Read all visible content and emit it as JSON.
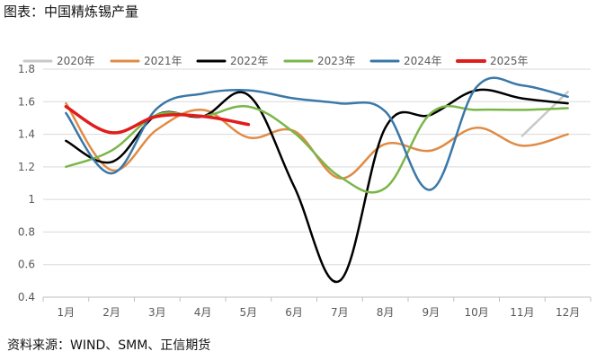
{
  "title": "图表：中国精炼锡产量",
  "source": "资料来源：WIND、SMM、正信期货",
  "chart_data": {
    "type": "line",
    "categories": [
      "1月",
      "2月",
      "3月",
      "4月",
      "5月",
      "6月",
      "7月",
      "8月",
      "9月",
      "10月",
      "11月",
      "12月"
    ],
    "ylim": [
      0.4,
      1.8
    ],
    "yticks": [
      0.4,
      0.6,
      0.8,
      1,
      1.2,
      1.4,
      1.6,
      1.8
    ],
    "ytick_labels": [
      "0.4",
      "0.6",
      "0.8",
      "1",
      "1.2",
      "1.4",
      "1.6",
      "1.8"
    ],
    "grid": true,
    "legend_position": "top",
    "series": [
      {
        "name": "2020年",
        "color": "#c8c8c8",
        "values": [
          null,
          null,
          null,
          null,
          null,
          null,
          null,
          null,
          null,
          null,
          1.39,
          1.66
        ]
      },
      {
        "name": "2021年",
        "color": "#e08b45",
        "values": [
          1.59,
          1.18,
          1.43,
          1.55,
          1.38,
          1.42,
          1.13,
          1.34,
          1.3,
          1.44,
          1.33,
          1.4
        ]
      },
      {
        "name": "2022年",
        "color": "#000000",
        "values": [
          1.36,
          1.23,
          1.52,
          1.51,
          1.64,
          1.08,
          0.5,
          1.44,
          1.52,
          1.67,
          1.62,
          1.59
        ]
      },
      {
        "name": "2023年",
        "color": "#7ab648",
        "values": [
          1.2,
          1.3,
          1.52,
          1.51,
          1.57,
          1.41,
          1.14,
          1.07,
          1.53,
          1.55,
          1.55,
          1.56
        ]
      },
      {
        "name": "2024年",
        "color": "#3a78a8",
        "values": [
          1.53,
          1.16,
          1.56,
          1.65,
          1.67,
          1.62,
          1.59,
          1.54,
          1.06,
          1.69,
          1.7,
          1.63
        ]
      },
      {
        "name": "2025年",
        "color": "#e01c1c",
        "values": [
          1.57,
          1.41,
          1.51,
          1.51,
          1.46,
          null,
          null,
          null,
          null,
          null,
          null,
          null
        ]
      }
    ]
  }
}
